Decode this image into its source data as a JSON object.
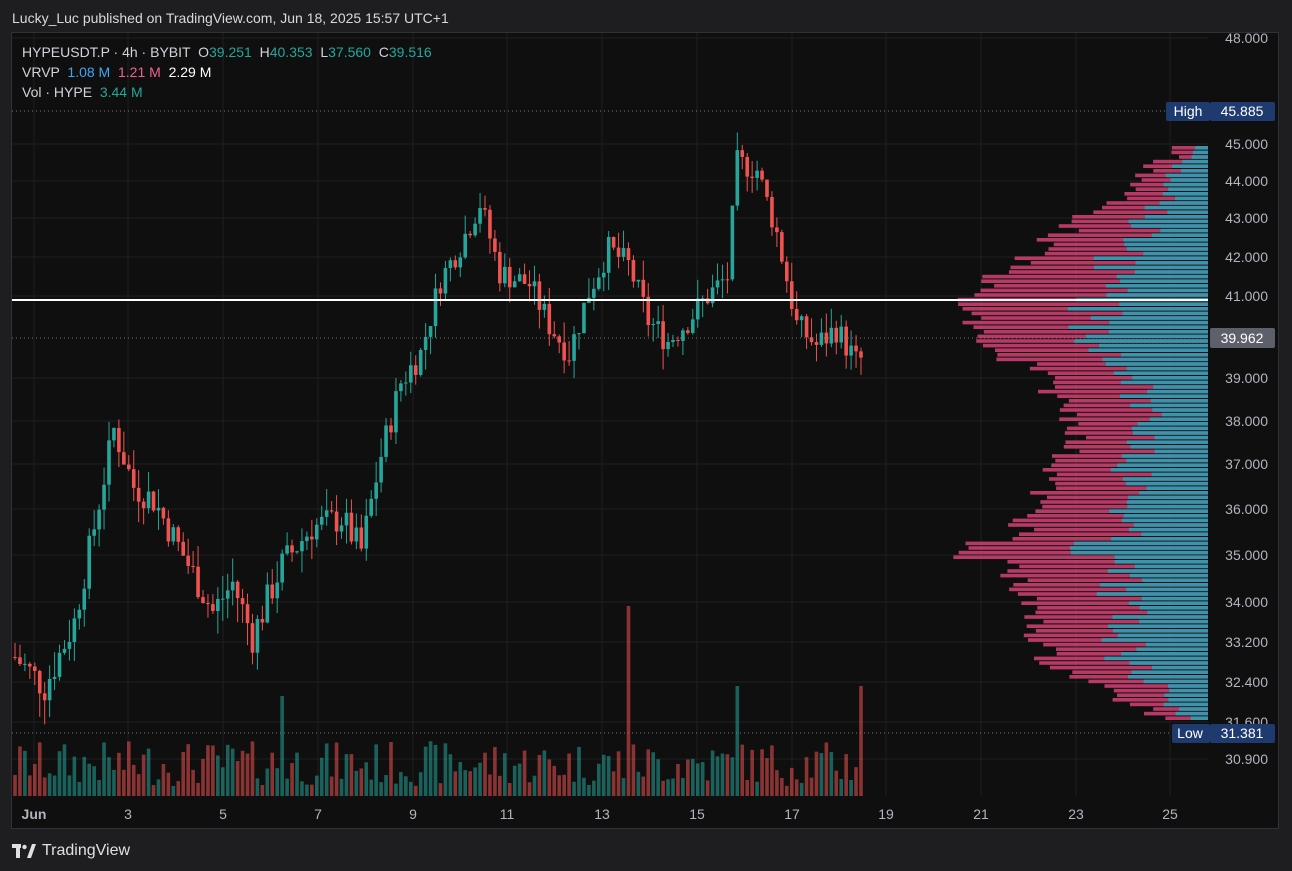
{
  "header": {
    "published_text": "Lucky_Luc published on TradingView.com, Jun 18, 2025 15:57 UTC+1"
  },
  "legend": {
    "symbol": "HYPEUSDT.P · 4h · BYBIT",
    "open_label": "O",
    "open": "39.251",
    "high_label": "H",
    "high": "40.353",
    "low_label": "L",
    "low": "37.560",
    "close_label": "C",
    "close": "39.516",
    "vrvp_label": "VRVP",
    "vrvp_up": "1.08 M",
    "vrvp_down": "1.21 M",
    "vrvp_total": "2.29 M",
    "vol_label": "Vol · HYPE",
    "vol": "3.44 M"
  },
  "price_axis": {
    "ticks": [
      "48.000",
      "45.000",
      "44.000",
      "43.000",
      "42.000",
      "41.000",
      "39.000",
      "38.000",
      "37.000",
      "36.000",
      "35.000",
      "34.000",
      "33.200",
      "32.400",
      "31.600",
      "30.900"
    ],
    "high_label": "High",
    "high_value": "45.885",
    "low_label": "Low",
    "low_value": "31.381",
    "current_value": "39.962"
  },
  "time_axis": {
    "ticks": [
      "Jun",
      "3",
      "5",
      "7",
      "9",
      "11",
      "13",
      "15",
      "17",
      "19",
      "21",
      "23",
      "25"
    ]
  },
  "colors": {
    "up": "#26a69a",
    "down": "#ef5350",
    "vp_up": "#26a3b8",
    "vp_down": "#e0457b",
    "hl_badge": "#1e3a6e",
    "current_badge": "#5d606b"
  },
  "footer": {
    "brand": "TradingView"
  }
}
